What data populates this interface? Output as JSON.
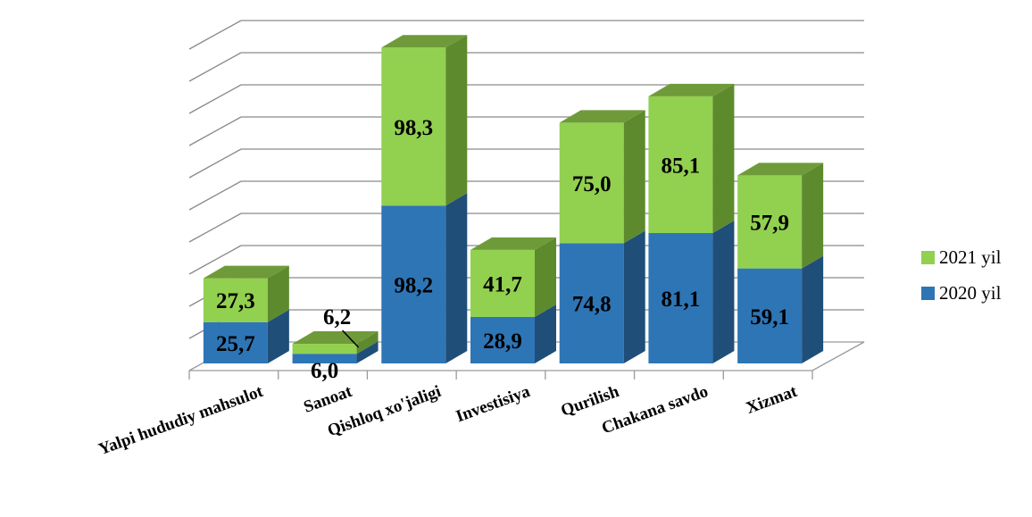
{
  "chart_data": {
    "type": "bar",
    "stacked": true,
    "three_d": true,
    "categories": [
      "Yalpi hududiy mahsulot",
      "Sanoat",
      "Qishloq xo'jaligi",
      "Investisiya",
      "Qurilish",
      "Chakana savdo",
      "Xizmat"
    ],
    "series": [
      {
        "name": "2020 yil",
        "values": [
          25.7,
          6.0,
          98.2,
          28.9,
          74.8,
          81.1,
          59.1
        ],
        "labels": [
          "25,7",
          "6,0",
          "98,2",
          "28,9",
          "74,8",
          "81,1",
          "59,1"
        ],
        "color": "#2e75b6"
      },
      {
        "name": "2021 yil",
        "values": [
          27.3,
          6.2,
          98.3,
          41.7,
          75.0,
          85.1,
          57.9
        ],
        "labels": [
          "27,3",
          "6,2",
          "98,3",
          "41,7",
          "75,0",
          "85,1",
          "57,9"
        ],
        "color": "#92d050"
      }
    ],
    "ylim": [
      0,
      200
    ],
    "grid": true,
    "legend": "right",
    "title": "",
    "xlabel": "",
    "ylabel": ""
  }
}
